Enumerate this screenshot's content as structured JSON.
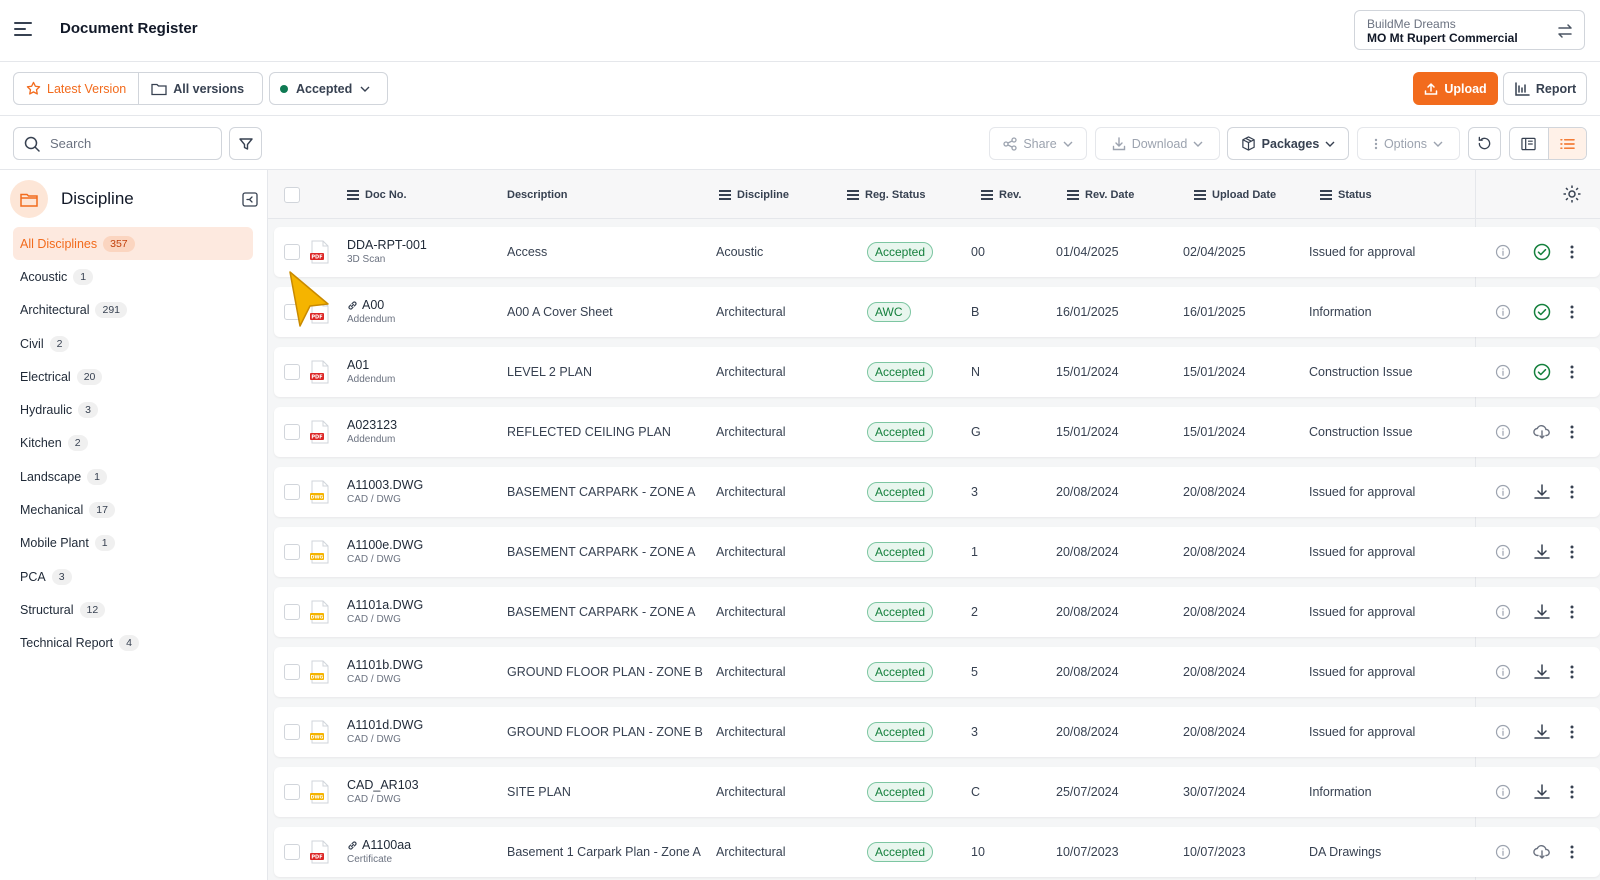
{
  "header": {
    "title": "Document Register",
    "project_org": "BuildMe Dreams",
    "project_name": "MO Mt Rupert Commercial"
  },
  "toolbar": {
    "latest_version": "Latest Version",
    "all_versions": "All versions",
    "status_filter": "Accepted",
    "upload": "Upload",
    "report": "Report",
    "search_placeholder": "Search",
    "share": "Share",
    "download": "Download",
    "packages": "Packages",
    "options": "Options"
  },
  "sidebar": {
    "title": "Discipline",
    "items": [
      {
        "label": "All Disciplines",
        "count": "357"
      },
      {
        "label": "Acoustic",
        "count": "1"
      },
      {
        "label": "Architectural",
        "count": "291"
      },
      {
        "label": "Civil",
        "count": "2"
      },
      {
        "label": "Electrical",
        "count": "20"
      },
      {
        "label": "Hydraulic",
        "count": "3"
      },
      {
        "label": "Kitchen",
        "count": "2"
      },
      {
        "label": "Landscape",
        "count": "1"
      },
      {
        "label": "Mechanical",
        "count": "17"
      },
      {
        "label": "Mobile Plant",
        "count": "1"
      },
      {
        "label": "PCA",
        "count": "3"
      },
      {
        "label": "Structural",
        "count": "12"
      },
      {
        "label": "Technical Report",
        "count": "4"
      }
    ]
  },
  "table": {
    "columns": {
      "doc_no": "Doc No.",
      "description": "Description",
      "discipline": "Discipline",
      "reg_status": "Reg. Status",
      "rev": "Rev.",
      "rev_date": "Rev. Date",
      "upload_date": "Upload Date",
      "status": "Status"
    },
    "rows": [
      {
        "file_type": "PDF",
        "linked": false,
        "doc_no": "DDA-RPT-001",
        "type": "3D Scan",
        "description": "Access",
        "discipline": "Acoustic",
        "reg_status": "Accepted",
        "rev": "00",
        "rev_date": "01/04/2025",
        "upload_date": "02/04/2025",
        "status": "Issued for approval",
        "action": "check"
      },
      {
        "file_type": "PDF",
        "linked": true,
        "doc_no": "A00",
        "type": "Addendum",
        "description": "A00 A Cover Sheet",
        "discipline": "Architectural",
        "reg_status": "AWC",
        "rev": "B",
        "rev_date": "16/01/2025",
        "upload_date": "16/01/2025",
        "status": "Information",
        "action": "check"
      },
      {
        "file_type": "PDF",
        "linked": false,
        "doc_no": "A01",
        "type": "Addendum",
        "description": "LEVEL 2 PLAN",
        "discipline": "Architectural",
        "reg_status": "Accepted",
        "rev": "N",
        "rev_date": "15/01/2024",
        "upload_date": "15/01/2024",
        "status": "Construction Issue",
        "action": "check"
      },
      {
        "file_type": "PDF",
        "linked": false,
        "doc_no": "A023123",
        "type": "Addendum",
        "description": "REFLECTED CEILING PLAN",
        "discipline": "Architectural",
        "reg_status": "Accepted",
        "rev": "G",
        "rev_date": "15/01/2024",
        "upload_date": "15/01/2024",
        "status": "Construction Issue",
        "action": "cloud"
      },
      {
        "file_type": "DWG",
        "linked": false,
        "doc_no": "A11003.DWG",
        "type": "CAD / DWG",
        "description": "BASEMENT CARPARK - ZONE A",
        "discipline": "Architectural",
        "reg_status": "Accepted",
        "rev": "3",
        "rev_date": "20/08/2024",
        "upload_date": "20/08/2024",
        "status": "Issued for approval",
        "action": "download"
      },
      {
        "file_type": "DWG",
        "linked": false,
        "doc_no": "A1100e.DWG",
        "type": "CAD / DWG",
        "description": "BASEMENT CARPARK - ZONE A",
        "discipline": "Architectural",
        "reg_status": "Accepted",
        "rev": "1",
        "rev_date": "20/08/2024",
        "upload_date": "20/08/2024",
        "status": "Issued for approval",
        "action": "download"
      },
      {
        "file_type": "DWG",
        "linked": false,
        "doc_no": "A1101a.DWG",
        "type": "CAD / DWG",
        "description": "BASEMENT CARPARK - ZONE A",
        "discipline": "Architectural",
        "reg_status": "Accepted",
        "rev": "2",
        "rev_date": "20/08/2024",
        "upload_date": "20/08/2024",
        "status": "Issued for approval",
        "action": "download"
      },
      {
        "file_type": "DWG",
        "linked": false,
        "doc_no": "A1101b.DWG",
        "type": "CAD / DWG",
        "description": "GROUND FLOOR PLAN - ZONE  B",
        "discipline": "Architectural",
        "reg_status": "Accepted",
        "rev": "5",
        "rev_date": "20/08/2024",
        "upload_date": "20/08/2024",
        "status": "Issued for approval",
        "action": "download"
      },
      {
        "file_type": "DWG",
        "linked": false,
        "doc_no": "A1101d.DWG",
        "type": "CAD / DWG",
        "description": "GROUND FLOOR PLAN - ZONE  B",
        "discipline": "Architectural",
        "reg_status": "Accepted",
        "rev": "3",
        "rev_date": "20/08/2024",
        "upload_date": "20/08/2024",
        "status": "Issued for approval",
        "action": "download"
      },
      {
        "file_type": "DWG",
        "linked": false,
        "doc_no": "CAD_AR103",
        "type": "CAD / DWG",
        "description": "SITE PLAN",
        "discipline": "Architectural",
        "reg_status": "Accepted",
        "rev": "C",
        "rev_date": "25/07/2024",
        "upload_date": "30/07/2024",
        "status": "Information",
        "action": "download"
      },
      {
        "file_type": "PDF",
        "linked": true,
        "doc_no": "A1100aa",
        "type": "Certificate",
        "description": "Basement 1 Carpark Plan - Zone A",
        "discipline": "Architectural",
        "reg_status": "Accepted",
        "rev": "10",
        "rev_date": "10/07/2023",
        "upload_date": "10/07/2023",
        "status": "DA Drawings",
        "action": "cloud"
      }
    ]
  },
  "colors": {
    "accent": "#f26b1d",
    "accepted_green": "#15803d",
    "pdf_red": "#dc2626",
    "dwg_yellow": "#f5b400"
  }
}
